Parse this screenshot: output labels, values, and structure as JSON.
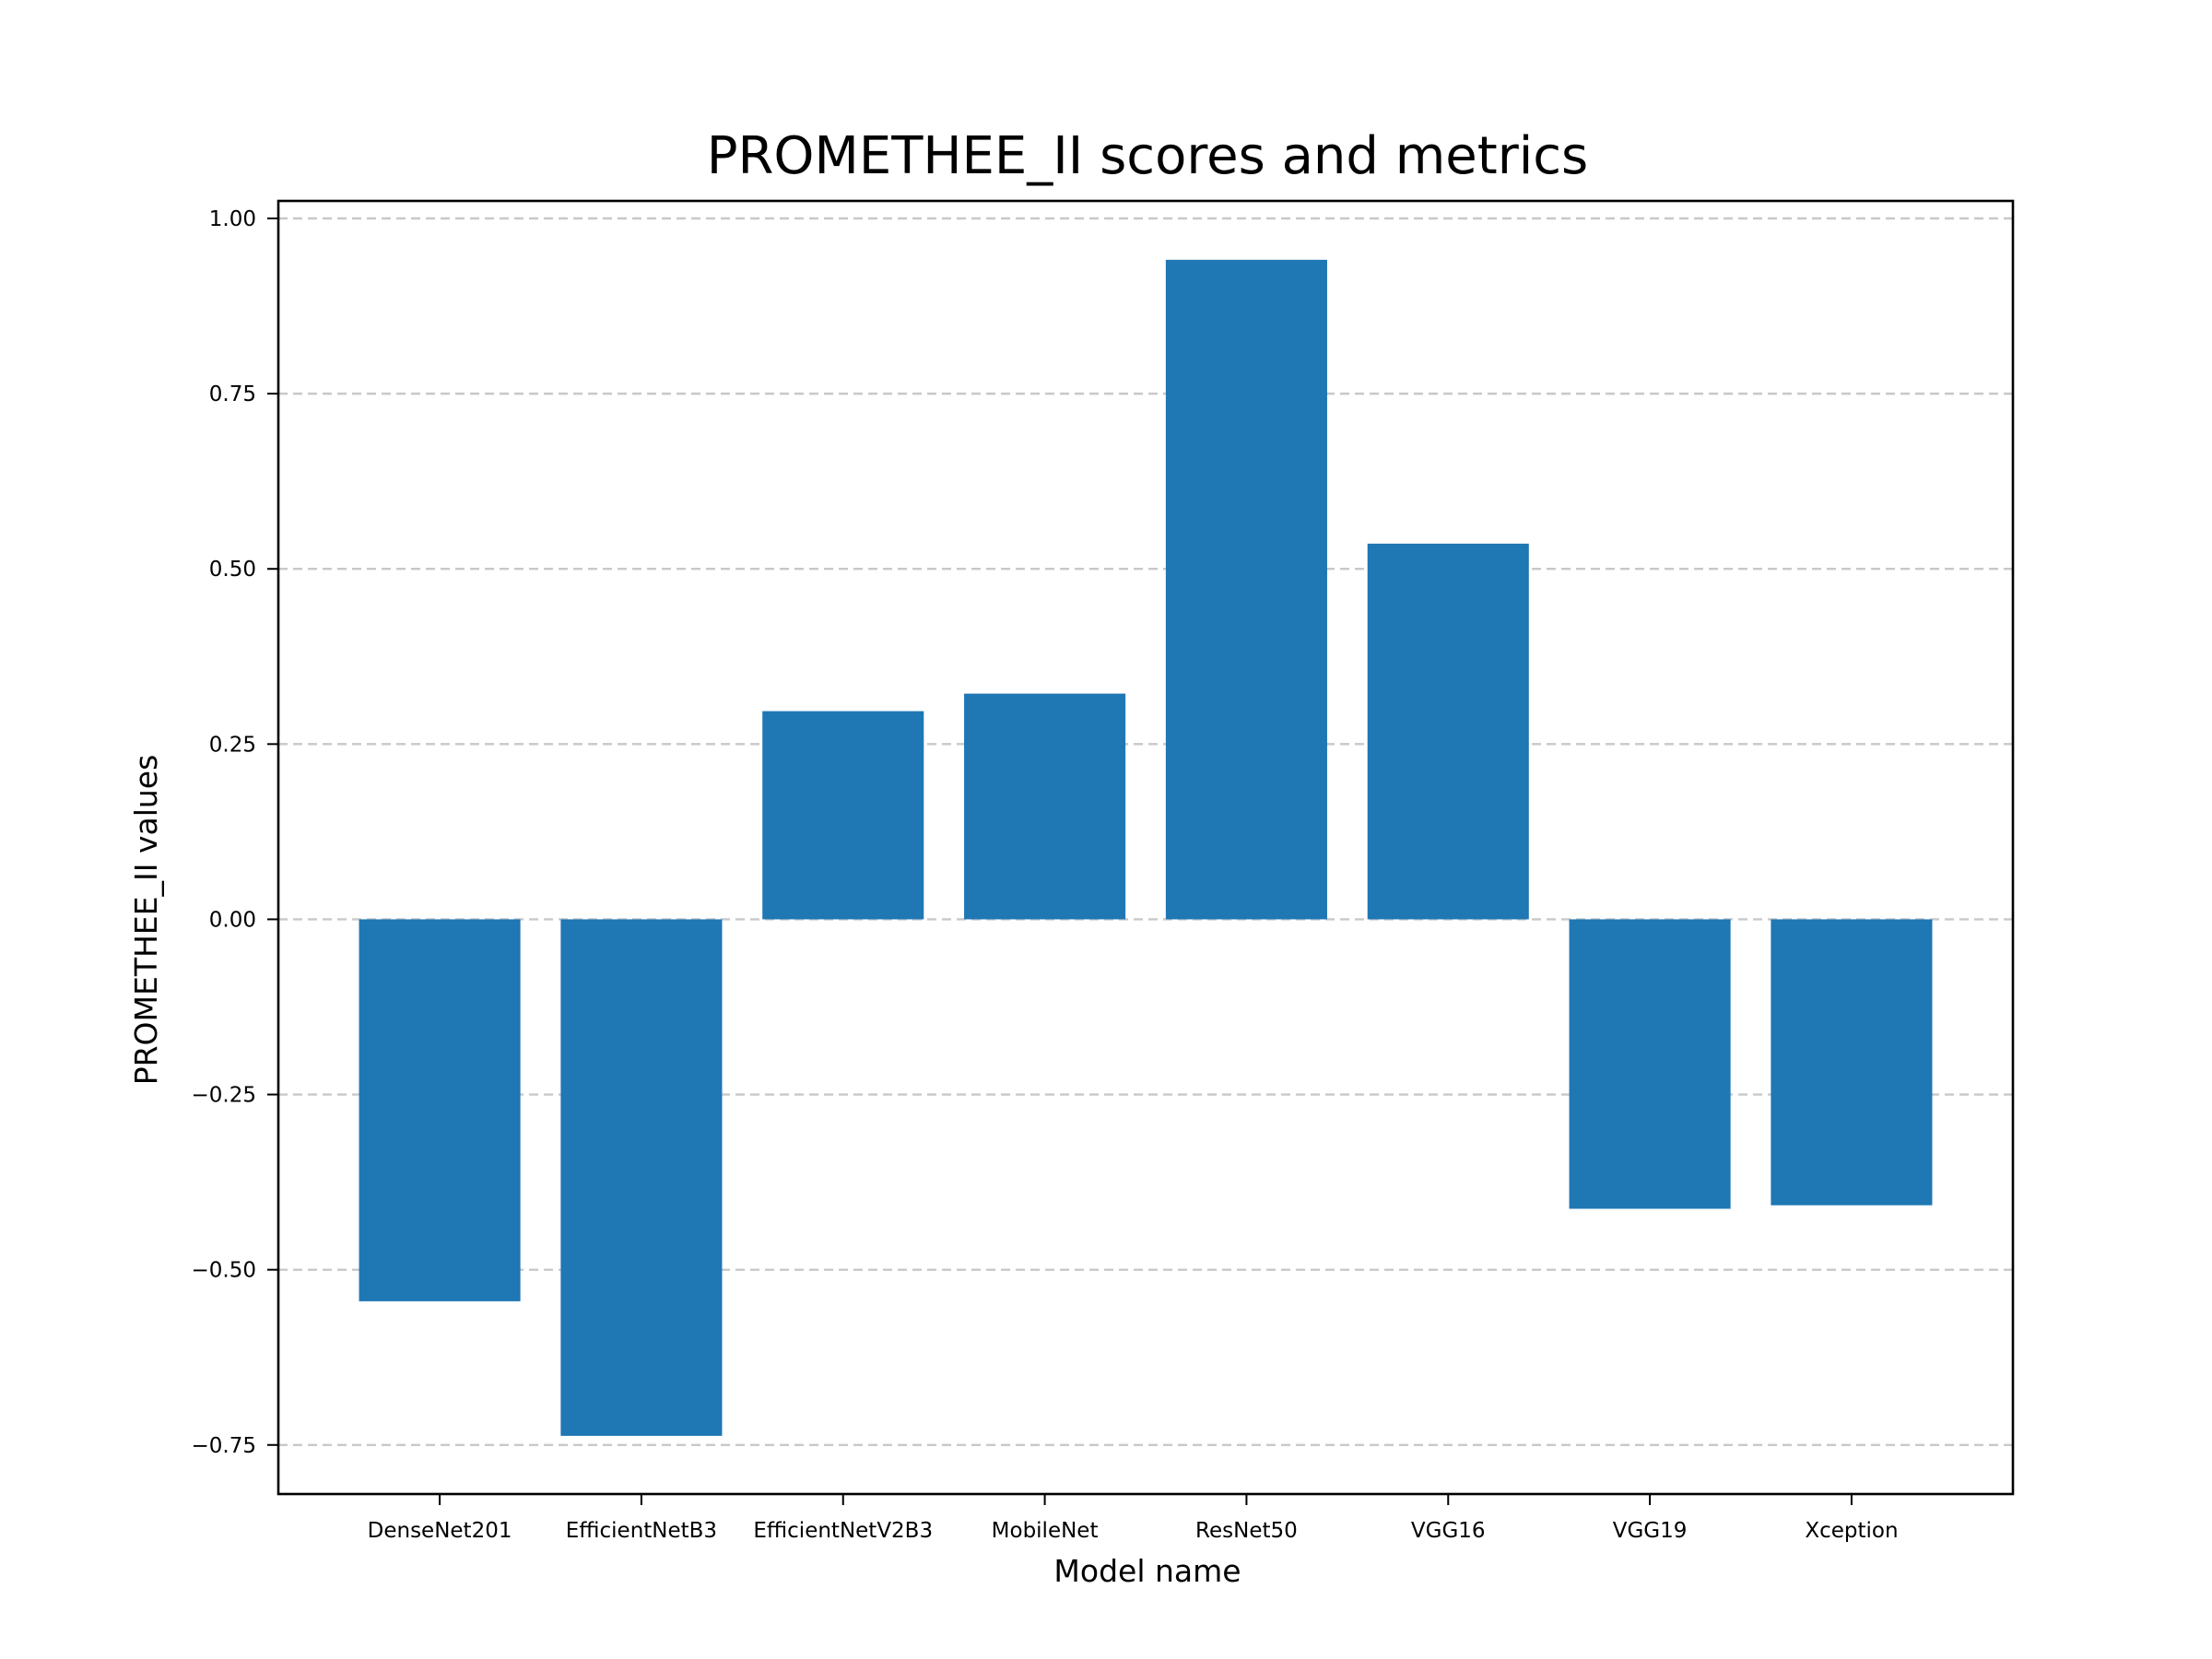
{
  "chart_data": {
    "type": "bar",
    "title": "PROMETHEE_II scores and metrics",
    "xlabel": "Model name",
    "ylabel": "PROMETHEE_II values",
    "categories": [
      "DenseNet201",
      "EfficientNetB3",
      "EfficientNetV2B3",
      "MobileNet",
      "ResNet50",
      "VGG16",
      "VGG19",
      "Xception"
    ],
    "values": [
      -0.545,
      -0.737,
      0.297,
      0.322,
      0.941,
      0.536,
      -0.413,
      -0.408
    ],
    "ylim": [
      -0.82,
      1.025
    ],
    "yticks": [
      1.0,
      0.75,
      0.5,
      0.25,
      0.0,
      -0.25,
      -0.5,
      -0.75
    ],
    "ytick_labels": [
      "1.00",
      "0.75",
      "0.50",
      "0.25",
      "0.00",
      "−0.25",
      "−0.50",
      "−0.75"
    ],
    "grid": "horizontal dashed",
    "bar_color": "#1f77b4",
    "grid_color": "#c8c8c8"
  }
}
